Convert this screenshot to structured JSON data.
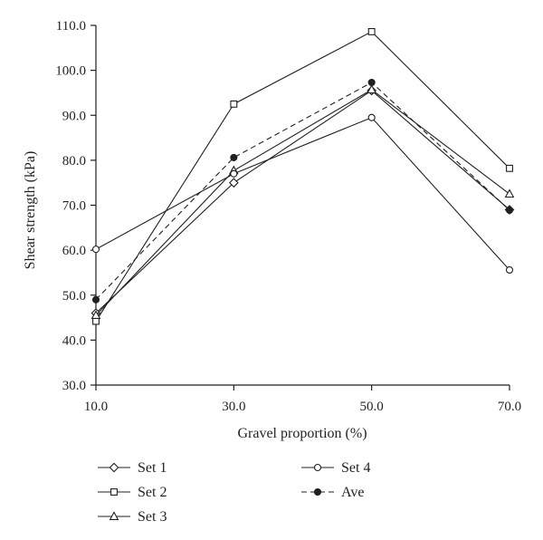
{
  "chart_data": {
    "type": "line",
    "title": "",
    "xlabel": "Gravel proportion (%)",
    "ylabel": "Shear strength (kPa)",
    "x": [
      10,
      30,
      50,
      70
    ],
    "x_tick_labels": [
      "10.0",
      "30.0",
      "50.0",
      "70.0"
    ],
    "y_tick_labels": [
      "30.0",
      "40.0",
      "50.0",
      "60.0",
      "70.0",
      "80.0",
      "90.0",
      "100.0",
      "110.0"
    ],
    "xlim": [
      10,
      70
    ],
    "ylim": [
      30,
      110
    ],
    "grid": false,
    "legend_position": "bottom",
    "line_color": "#231f20",
    "series": [
      {
        "name": "Set 1",
        "marker": "diamond-open",
        "dash": "solid",
        "values": [
          46.0,
          75.0,
          95.5,
          69.0
        ]
      },
      {
        "name": "Set 2",
        "marker": "square-open",
        "dash": "solid",
        "values": [
          44.2,
          92.5,
          108.6,
          78.2
        ]
      },
      {
        "name": "Set 3",
        "marker": "triangle-open",
        "dash": "solid",
        "values": [
          45.5,
          77.7,
          95.7,
          72.5
        ]
      },
      {
        "name": "Set 4",
        "marker": "circle-open",
        "dash": "solid",
        "values": [
          60.2,
          77.0,
          89.5,
          55.6
        ]
      },
      {
        "name": "Ave",
        "marker": "circle-filled",
        "dash": "dashed",
        "values": [
          49.0,
          80.6,
          97.3,
          68.9
        ]
      }
    ]
  }
}
